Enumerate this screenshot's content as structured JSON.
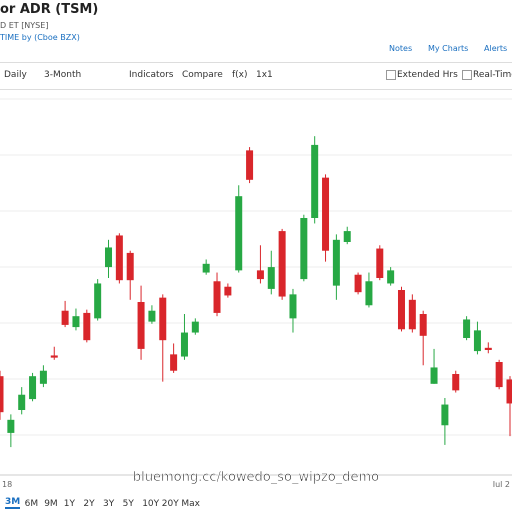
{
  "header": {
    "title": "or ADR (TSM)",
    "exchange": "D ET [NYSE]",
    "source": "TIME by (Cboe BZX)",
    "links": [
      "Notes",
      "My Charts",
      "Alerts"
    ]
  },
  "toolbar": {
    "items": [
      "Daily",
      "3-Month",
      "Indicators",
      "Compare",
      "f(x)",
      "1x1"
    ],
    "checkboxes": [
      "Extended Hrs",
      "Real-Time"
    ]
  },
  "chart": {
    "type": "candlestick",
    "up_color": "#27a844",
    "down_color": "#d9262b",
    "ylim": [
      0,
      330
    ],
    "candles": [
      [
        75,
        80,
        35,
        42
      ],
      [
        23,
        40,
        10,
        35
      ],
      [
        44,
        65,
        40,
        58
      ],
      [
        54,
        78,
        52,
        75
      ],
      [
        68,
        85,
        65,
        80
      ],
      [
        94,
        102,
        90,
        92
      ],
      [
        135,
        144,
        120,
        122
      ],
      [
        120,
        137,
        117,
        130
      ],
      [
        133,
        136,
        106,
        108
      ],
      [
        128,
        164,
        126,
        160
      ],
      [
        175,
        200,
        165,
        193
      ],
      [
        204,
        206,
        160,
        163
      ],
      [
        188,
        190,
        145,
        163
      ],
      [
        143,
        158,
        90,
        100
      ],
      [
        125,
        140,
        123,
        135
      ],
      [
        147,
        150,
        70,
        108
      ],
      [
        95,
        105,
        78,
        80
      ],
      [
        93,
        132,
        90,
        115
      ],
      [
        115,
        128,
        113,
        125
      ],
      [
        170,
        182,
        168,
        178
      ],
      [
        162,
        170,
        130,
        133
      ],
      [
        157,
        160,
        147,
        149
      ],
      [
        172,
        250,
        170,
        240
      ],
      [
        282,
        285,
        252,
        255
      ],
      [
        172,
        195,
        160,
        164
      ],
      [
        155,
        190,
        150,
        175
      ],
      [
        208,
        210,
        145,
        148
      ],
      [
        128,
        155,
        115,
        150
      ],
      [
        164,
        223,
        162,
        220
      ],
      [
        220,
        295,
        215,
        287
      ],
      [
        257,
        260,
        180,
        190
      ],
      [
        158,
        205,
        145,
        200
      ],
      [
        198,
        212,
        196,
        208
      ],
      [
        168,
        170,
        150,
        152
      ],
      [
        140,
        170,
        138,
        162
      ],
      [
        192,
        195,
        163,
        165
      ],
      [
        160,
        175,
        158,
        172
      ],
      [
        154,
        157,
        116,
        118
      ],
      [
        145,
        150,
        115,
        118
      ],
      [
        132,
        135,
        85,
        112
      ],
      [
        68,
        100,
        68,
        83
      ],
      [
        30,
        55,
        12,
        49
      ],
      [
        77,
        80,
        60,
        62
      ],
      [
        110,
        130,
        108,
        127
      ],
      [
        98,
        125,
        95,
        117
      ],
      [
        101,
        106,
        96,
        99
      ],
      [
        88,
        90,
        63,
        65
      ],
      [
        72,
        75,
        20,
        50
      ]
    ],
    "x_labels": [
      "18",
      "Jul 2"
    ],
    "watermark": "bluemong.cc/kowedo_so_wipzo_demo"
  },
  "ranges": {
    "items": [
      "3M",
      "6M",
      "9M",
      "1Y",
      "2Y",
      "3Y",
      "5Y",
      "10Y",
      "20Y",
      "Max"
    ],
    "active": 0
  }
}
